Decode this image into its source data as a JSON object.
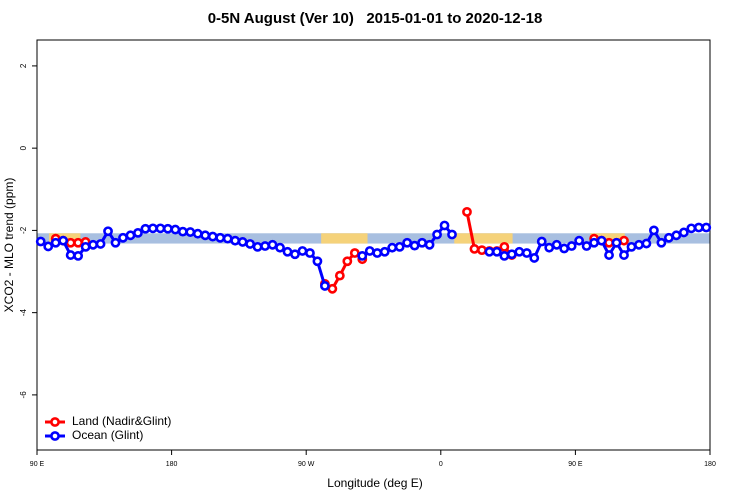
{
  "chart_data": {
    "type": "line",
    "title": "0-5N August (Ver 10)   2015-01-01 to 2020-12-18",
    "x_label": "Longitude (deg E)",
    "y_label": "XCO2 - MLO trend (ppm)",
    "x": [
      92.5,
      97.5,
      102.5,
      107.5,
      112.5,
      117.5,
      122.5,
      127.5,
      132.5,
      137.5,
      142.5,
      147.5,
      152.5,
      157.5,
      162.5,
      167.5,
      172.5,
      177.5,
      182.5,
      187.5,
      192.5,
      197.5,
      202.5,
      207.5,
      212.5,
      217.5,
      222.5,
      227.5,
      232.5,
      237.5,
      242.5,
      247.5,
      252.5,
      257.5,
      262.5,
      267.5,
      272.5,
      277.5,
      282.5,
      287.5,
      292.5,
      297.5,
      302.5,
      307.5,
      312.5,
      317.5,
      322.5,
      327.5,
      332.5,
      337.5,
      342.5,
      347.5,
      352.5,
      357.5,
      362.5,
      367.5,
      372.5,
      377.5,
      382.5,
      387.5,
      392.5,
      397.5,
      402.5,
      407.5,
      412.5,
      417.5,
      422.5,
      427.5,
      432.5,
      437.5,
      442.5,
      447.5,
      452.5,
      457.5,
      462.5,
      467.5,
      472.5,
      477.5,
      482.5,
      487.5,
      492.5,
      497.5,
      502.5,
      507.5,
      512.5,
      517.5,
      522.5,
      527.5,
      532.5,
      537.5
    ],
    "series": [
      {
        "name": "Land (Nadir&Glint)",
        "color": "#ff0000",
        "values": [
          null,
          null,
          -2.2,
          -2.25,
          -2.3,
          -2.3,
          -2.28,
          null,
          null,
          null,
          null,
          null,
          null,
          null,
          null,
          null,
          null,
          null,
          null,
          null,
          null,
          null,
          null,
          null,
          null,
          null,
          null,
          null,
          null,
          null,
          null,
          null,
          null,
          null,
          null,
          null,
          null,
          null,
          -3.3,
          -3.42,
          -3.1,
          -2.75,
          -2.55,
          -2.7,
          null,
          null,
          null,
          null,
          null,
          null,
          null,
          null,
          null,
          null,
          null,
          null,
          null,
          -1.55,
          -2.45,
          -2.48,
          -2.5,
          -2.5,
          -2.4,
          -2.6,
          null,
          null,
          null,
          null,
          null,
          null,
          null,
          null,
          null,
          null,
          -2.2,
          -2.25,
          -2.3,
          -2.3,
          -2.25,
          null,
          null,
          null,
          null,
          null,
          null,
          null,
          null,
          null,
          null,
          null
        ]
      },
      {
        "name": "Ocean (Glint)",
        "color": "#0000ff",
        "values": [
          -2.27,
          -2.39,
          -2.3,
          -2.25,
          -2.6,
          -2.62,
          -2.4,
          -2.35,
          -2.33,
          -2.02,
          -2.3,
          -2.18,
          -2.12,
          -2.06,
          -1.96,
          -1.95,
          -1.95,
          -1.96,
          -1.98,
          -2.03,
          -2.04,
          -2.08,
          -2.12,
          -2.15,
          -2.18,
          -2.2,
          -2.25,
          -2.28,
          -2.33,
          -2.4,
          -2.38,
          -2.35,
          -2.42,
          -2.52,
          -2.58,
          -2.5,
          -2.55,
          -2.75,
          -3.35,
          null,
          null,
          null,
          null,
          -2.62,
          -2.5,
          -2.55,
          -2.52,
          -2.42,
          -2.4,
          -2.3,
          -2.37,
          -2.3,
          -2.35,
          -2.1,
          -1.88,
          -2.1,
          null,
          null,
          null,
          null,
          -2.52,
          -2.52,
          -2.62,
          -2.58,
          -2.52,
          -2.55,
          -2.67,
          -2.27,
          -2.42,
          -2.35,
          -2.44,
          -2.38,
          -2.25,
          -2.38,
          -2.3,
          -2.25,
          -2.6,
          -2.3,
          -2.6,
          -2.4,
          -2.35,
          -2.32,
          -2.0,
          -2.3,
          -2.18,
          -2.12,
          -2.05,
          -1.95,
          -1.93,
          -1.93
        ]
      }
    ],
    "band": {
      "y": [
        -2.32,
        -2.07
      ],
      "color": "#a8bfe0",
      "land_color": "#f5d27a",
      "land_x": [
        [
          98,
          119
        ],
        [
          280,
          311
        ],
        [
          369,
          408
        ],
        [
          460,
          483
        ]
      ]
    },
    "xlim": [
      90,
      540
    ],
    "xticks": [
      {
        "value": 90,
        "label": "90 E"
      },
      180,
      {
        "value": 270,
        "label": "90 W"
      },
      {
        "value": 360,
        "label": "0"
      },
      {
        "value": 450,
        "label": "90 E"
      },
      {
        "value": 540,
        "label": "180"
      }
    ],
    "ylim": [
      -7.34,
      2.63
    ],
    "yticks": [
      2,
      0,
      -2,
      -4,
      -6
    ],
    "legend": "bottom-left"
  }
}
